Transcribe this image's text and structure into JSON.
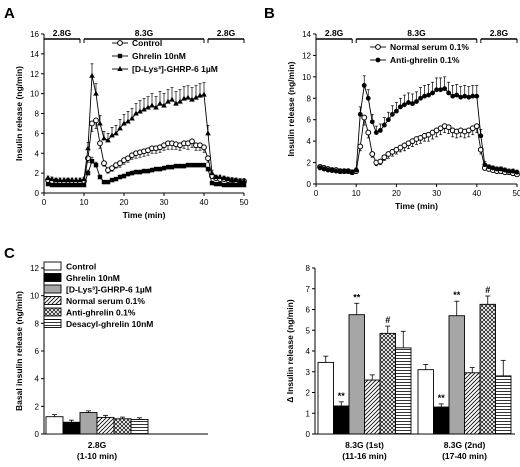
{
  "panels": {
    "a": "A",
    "b": "B",
    "c": "C"
  },
  "colors": {
    "ink": "#000000",
    "gray": "#a6a6a6",
    "white": "#ffffff"
  },
  "chart_data": [
    {
      "id": "A",
      "type": "line",
      "xlabel": "Time (min)",
      "ylabel": "Insulin release (ng/min)",
      "xlim": [
        0,
        50
      ],
      "ylim": [
        0,
        16
      ],
      "xticks": [
        0,
        10,
        20,
        30,
        40,
        50
      ],
      "yticks": [
        0,
        2,
        4,
        6,
        8,
        10,
        12,
        14,
        16
      ],
      "glucose_bars": [
        {
          "label": "2.8G",
          "from": 0,
          "to": 9
        },
        {
          "label": "8.3G",
          "from": 10,
          "to": 40
        },
        {
          "label": "2.8G",
          "from": 41,
          "to": 50
        }
      ],
      "x": [
        1,
        2,
        3,
        4,
        5,
        6,
        7,
        8,
        9,
        10,
        11,
        12,
        13,
        14,
        15,
        16,
        17,
        18,
        19,
        20,
        21,
        22,
        23,
        24,
        25,
        26,
        27,
        28,
        29,
        30,
        31,
        32,
        33,
        34,
        35,
        36,
        37,
        38,
        39,
        40,
        41,
        42,
        43,
        44,
        45,
        46,
        47,
        48,
        49,
        50
      ],
      "series": [
        {
          "name": "Control",
          "marker": "open-circle",
          "values": [
            1.3,
            1.2,
            1.2,
            1.1,
            1.1,
            1.2,
            1.1,
            1.1,
            1.1,
            1.2,
            3.5,
            7.0,
            7.3,
            5.0,
            3.0,
            2.3,
            2.5,
            2.8,
            3.0,
            3.3,
            3.5,
            3.8,
            4.0,
            4.1,
            4.2,
            4.3,
            4.5,
            4.5,
            4.6,
            4.8,
            5.0,
            5.0,
            4.9,
            4.8,
            5.0,
            5.0,
            5.2,
            4.8,
            4.8,
            4.6,
            3.5,
            1.7,
            1.5,
            1.4,
            1.4,
            1.3,
            1.3,
            1.2,
            1.2,
            1.2
          ],
          "errors": [
            0.1,
            0.1,
            0.1,
            0.1,
            0.1,
            0.1,
            0.1,
            0.1,
            0.1,
            0.1,
            0.4,
            0.8,
            0.8,
            0.5,
            0.3,
            0.3,
            0.3,
            0.3,
            0.4,
            0.4,
            0.4,
            0.4,
            0.5,
            0.5,
            0.5,
            0.5,
            0.5,
            0.5,
            0.5,
            0.5,
            0.6,
            0.6,
            0.5,
            0.5,
            0.5,
            0.6,
            0.6,
            0.5,
            0.5,
            0.5,
            0.4,
            0.2,
            0.2,
            0.2,
            0.2,
            0.2,
            0.2,
            0.2,
            0.2,
            0.2
          ]
        },
        {
          "name": "Ghrelin 10nM",
          "marker": "filled-square",
          "values": [
            0.9,
            0.8,
            0.8,
            0.8,
            0.8,
            0.8,
            0.8,
            0.8,
            0.8,
            0.8,
            2.0,
            3.2,
            2.8,
            1.6,
            1.1,
            1.1,
            1.3,
            1.4,
            1.6,
            1.7,
            1.9,
            2.0,
            2.1,
            2.1,
            2.2,
            2.2,
            2.3,
            2.4,
            2.4,
            2.5,
            2.6,
            2.6,
            2.7,
            2.7,
            2.7,
            2.8,
            2.8,
            2.8,
            2.8,
            2.8,
            2.4,
            1.0,
            0.9,
            0.9,
            0.8,
            0.8,
            0.8,
            0.8,
            0.8,
            0.8
          ],
          "errors": [
            0.1,
            0.1,
            0.1,
            0.1,
            0.1,
            0.1,
            0.1,
            0.1,
            0.1,
            0.1,
            0.3,
            0.4,
            0.3,
            0.2,
            0.1,
            0.1,
            0.1,
            0.1,
            0.2,
            0.2,
            0.2,
            0.2,
            0.2,
            0.2,
            0.2,
            0.2,
            0.2,
            0.2,
            0.2,
            0.2,
            0.2,
            0.2,
            0.2,
            0.2,
            0.2,
            0.2,
            0.2,
            0.2,
            0.2,
            0.2,
            0.2,
            0.1,
            0.1,
            0.1,
            0.1,
            0.1,
            0.1,
            0.1,
            0.1,
            0.1
          ]
        },
        {
          "name": "[D-Lys³]-GHRP-6 1µM",
          "marker": "filled-triangle",
          "values": [
            1.5,
            1.4,
            1.3,
            1.3,
            1.3,
            1.3,
            1.3,
            1.3,
            1.3,
            1.4,
            4.5,
            11.8,
            10.0,
            7.0,
            5.5,
            5.3,
            5.8,
            6.0,
            6.5,
            7.0,
            7.2,
            7.5,
            8.0,
            8.2,
            8.4,
            8.6,
            8.8,
            8.6,
            9.0,
            8.8,
            9.2,
            9.4,
            9.0,
            9.2,
            9.5,
            9.6,
            9.4,
            9.6,
            9.8,
            9.9,
            6.0,
            2.0,
            1.6,
            1.6,
            1.5,
            1.4,
            1.3,
            1.3,
            1.2,
            1.2
          ],
          "errors": [
            0.2,
            0.2,
            0.2,
            0.2,
            0.2,
            0.2,
            0.2,
            0.2,
            0.2,
            0.2,
            0.6,
            1.2,
            1.0,
            0.8,
            0.7,
            0.7,
            0.8,
            0.8,
            0.9,
            0.9,
            1.0,
            1.0,
            1.0,
            1.1,
            1.1,
            1.1,
            1.2,
            1.1,
            1.2,
            1.2,
            1.2,
            1.2,
            1.2,
            1.2,
            1.2,
            1.2,
            1.2,
            1.2,
            1.2,
            1.2,
            0.8,
            0.3,
            0.2,
            0.2,
            0.2,
            0.2,
            0.2,
            0.2,
            0.2,
            0.2
          ]
        }
      ]
    },
    {
      "id": "B",
      "type": "line",
      "xlabel": "Time (min)",
      "ylabel": "Insulin release (ng/min)",
      "xlim": [
        0,
        50
      ],
      "ylim": [
        0,
        14
      ],
      "xticks": [
        0,
        10,
        20,
        30,
        40,
        50
      ],
      "yticks": [
        0,
        2,
        4,
        6,
        8,
        10,
        12,
        14
      ],
      "glucose_bars": [
        {
          "label": "2.8G",
          "from": 0,
          "to": 9
        },
        {
          "label": "8.3G",
          "from": 10,
          "to": 40
        },
        {
          "label": "2.8G",
          "from": 41,
          "to": 50
        }
      ],
      "x": [
        1,
        2,
        3,
        4,
        5,
        6,
        7,
        8,
        9,
        10,
        11,
        12,
        13,
        14,
        15,
        16,
        17,
        18,
        19,
        20,
        21,
        22,
        23,
        24,
        25,
        26,
        27,
        28,
        29,
        30,
        31,
        32,
        33,
        34,
        35,
        36,
        37,
        38,
        39,
        40,
        41,
        42,
        43,
        44,
        45,
        46,
        47,
        48,
        49,
        50
      ],
      "series": [
        {
          "name": "Normal serum 0.1%",
          "marker": "open-circle",
          "values": [
            1.6,
            1.5,
            1.4,
            1.3,
            1.3,
            1.2,
            1.2,
            1.2,
            1.1,
            1.2,
            3.5,
            6.2,
            4.8,
            2.8,
            2.0,
            2.1,
            2.5,
            2.8,
            3.0,
            3.2,
            3.4,
            3.6,
            3.8,
            4.0,
            4.2,
            4.3,
            4.5,
            4.6,
            4.8,
            5.0,
            5.2,
            5.4,
            5.3,
            5.0,
            4.9,
            5.0,
            4.9,
            5.0,
            5.2,
            5.4,
            3.2,
            1.5,
            1.4,
            1.3,
            1.2,
            1.2,
            1.1,
            1.1,
            1.0,
            0.9
          ],
          "errors": [
            0.2,
            0.2,
            0.2,
            0.2,
            0.2,
            0.2,
            0.2,
            0.2,
            0.2,
            0.2,
            0.4,
            0.7,
            0.5,
            0.3,
            0.3,
            0.3,
            0.3,
            0.4,
            0.4,
            0.4,
            0.4,
            0.5,
            0.5,
            0.5,
            0.5,
            0.5,
            0.5,
            0.6,
            0.6,
            0.6,
            0.6,
            0.6,
            0.6,
            0.6,
            0.6,
            0.6,
            0.6,
            0.6,
            0.6,
            0.6,
            0.4,
            0.2,
            0.2,
            0.2,
            0.2,
            0.2,
            0.2,
            0.2,
            0.2,
            0.2
          ]
        },
        {
          "name": "Anti-ghrelin 0.1%",
          "marker": "filled-circle",
          "values": [
            1.5,
            1.4,
            1.3,
            1.3,
            1.2,
            1.2,
            1.2,
            1.2,
            1.1,
            1.3,
            6.5,
            9.2,
            8.0,
            5.8,
            4.8,
            5.0,
            5.5,
            6.0,
            6.5,
            6.8,
            7.2,
            7.4,
            7.6,
            7.5,
            7.7,
            8.0,
            8.2,
            8.3,
            8.5,
            8.8,
            8.8,
            8.9,
            8.5,
            8.2,
            8.3,
            8.1,
            8.2,
            8.1,
            8.2,
            8.2,
            4.5,
            1.8,
            1.6,
            1.5,
            1.4,
            1.4,
            1.3,
            1.2,
            1.2,
            1.1
          ],
          "errors": [
            0.2,
            0.2,
            0.2,
            0.2,
            0.2,
            0.2,
            0.2,
            0.2,
            0.2,
            0.2,
            0.7,
            0.9,
            0.8,
            0.7,
            0.6,
            0.6,
            0.7,
            0.7,
            0.8,
            0.8,
            0.8,
            0.9,
            0.9,
            0.9,
            0.9,
            1.0,
            1.0,
            1.0,
            1.0,
            1.1,
            1.1,
            1.1,
            1.0,
            1.0,
            1.0,
            1.0,
            1.0,
            1.0,
            1.0,
            1.0,
            0.6,
            0.3,
            0.2,
            0.2,
            0.2,
            0.2,
            0.2,
            0.2,
            0.2,
            0.2
          ]
        }
      ]
    },
    {
      "id": "C-basal",
      "type": "bar",
      "ylabel": "Basal insulin release (ng/min)",
      "ylim": [
        0,
        12
      ],
      "yticks": [
        0,
        2,
        4,
        6,
        8,
        10,
        12
      ],
      "groups": [
        {
          "label": "2.8G",
          "sublabel": "(1-10 min)"
        }
      ],
      "series": [
        {
          "name": "Control",
          "pattern": "white",
          "values": [
            1.25
          ],
          "errors": [
            0.15
          ]
        },
        {
          "name": "Ghrelin 10nM",
          "pattern": "black",
          "values": [
            0.85
          ],
          "errors": [
            0.15
          ]
        },
        {
          "name": "[D-Lys³]-GHRP-6 1µM",
          "pattern": "gray",
          "values": [
            1.55
          ],
          "errors": [
            0.12
          ]
        },
        {
          "name": "Normal serum 0.1%",
          "pattern": "diag",
          "values": [
            1.2
          ],
          "errors": [
            0.15
          ]
        },
        {
          "name": "Anti-ghrelin 0.1%",
          "pattern": "cross",
          "values": [
            1.1
          ],
          "errors": [
            0.12
          ]
        },
        {
          "name": "Desacyl-ghrelin 10nM",
          "pattern": "hlines",
          "values": [
            1.05
          ],
          "errors": [
            0.12
          ]
        }
      ]
    },
    {
      "id": "C-delta",
      "type": "bar",
      "ylabel": "Δ Insulin release (ng/min)",
      "ylim": [
        0,
        8
      ],
      "yticks": [
        0,
        1,
        2,
        3,
        4,
        5,
        6,
        7,
        8
      ],
      "groups": [
        {
          "label": "8.3G (1st)",
          "sublabel": "(11-16 min)"
        },
        {
          "label": "8.3G (2nd)",
          "sublabel": "(17-40 min)"
        }
      ],
      "series": [
        {
          "name": "Control",
          "pattern": "white",
          "values": [
            3.45,
            3.1
          ],
          "errors": [
            0.3,
            0.25
          ],
          "marks": [
            "",
            ""
          ]
        },
        {
          "name": "Ghrelin 10nM",
          "pattern": "black",
          "values": [
            1.35,
            1.3
          ],
          "errors": [
            0.2,
            0.15
          ],
          "marks": [
            "**",
            "**"
          ]
        },
        {
          "name": "[D-Lys³]-GHRP-6 1µM",
          "pattern": "gray",
          "values": [
            5.75,
            5.7
          ],
          "errors": [
            0.55,
            0.7
          ],
          "marks": [
            "**",
            "**"
          ]
        },
        {
          "name": "Normal serum 0.1%",
          "pattern": "diag",
          "values": [
            2.6,
            2.95
          ],
          "errors": [
            0.25,
            0.25
          ],
          "marks": [
            "",
            ""
          ]
        },
        {
          "name": "Anti-ghrelin 0.1%",
          "pattern": "cross",
          "values": [
            4.85,
            6.25
          ],
          "errors": [
            0.35,
            0.4
          ],
          "marks": [
            "#",
            "#"
          ]
        },
        {
          "name": "Desacyl-ghrelin 10nM",
          "pattern": "hlines",
          "values": [
            4.15,
            2.8
          ],
          "errors": [
            0.8,
            0.75
          ],
          "marks": [
            "",
            ""
          ]
        }
      ]
    }
  ]
}
